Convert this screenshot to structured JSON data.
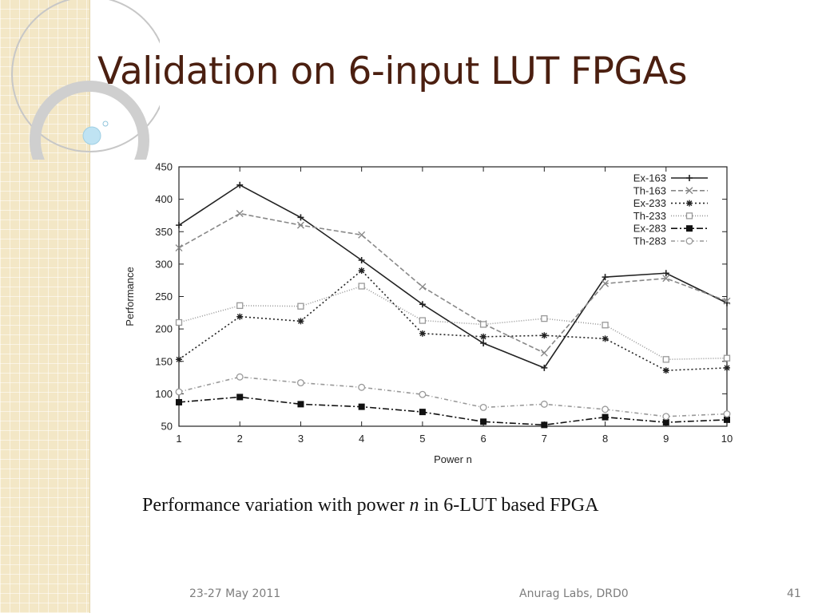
{
  "slide": {
    "title": "Validation on 6-input LUT FPGAs",
    "caption": {
      "before": "Performance variation with power ",
      "var": "n",
      "after": " in 6-LUT based FPGA"
    },
    "footer": {
      "date": "23-27 May 2011",
      "org": "Anurag Labs, DRD0",
      "page": "41"
    }
  },
  "colors": {
    "title": "#4b1f10",
    "sidebar": "#f3e7c6",
    "accent_bubble": "#bfe3f3"
  },
  "chart_data": {
    "type": "line",
    "title": "",
    "xlabel": "Power n",
    "ylabel": "Performance",
    "x": [
      1,
      2,
      3,
      4,
      5,
      6,
      7,
      8,
      9,
      10
    ],
    "xlim": [
      1,
      10
    ],
    "ylim": [
      50,
      450
    ],
    "yticks": [
      50,
      100,
      150,
      200,
      250,
      300,
      350,
      400,
      450
    ],
    "legend_position": "top-right",
    "grid": false,
    "series": [
      {
        "name": "Ex-163",
        "values": [
          360,
          422,
          372,
          306,
          238,
          178,
          140,
          280,
          286,
          240
        ],
        "color": "#222222",
        "marker": "plus",
        "dash": ""
      },
      {
        "name": "Th-163",
        "values": [
          325,
          378,
          360,
          345,
          265,
          208,
          163,
          270,
          278,
          243
        ],
        "color": "#888888",
        "marker": "x",
        "dash": "6,3"
      },
      {
        "name": "Ex-233",
        "values": [
          153,
          219,
          212,
          290,
          193,
          188,
          190,
          185,
          136,
          140
        ],
        "color": "#222222",
        "marker": "star",
        "dash": "2,3"
      },
      {
        "name": "Th-233",
        "values": [
          210,
          236,
          235,
          266,
          213,
          207,
          216,
          206,
          153,
          155
        ],
        "color": "#999999",
        "marker": "square-open",
        "dash": "1,2"
      },
      {
        "name": "Ex-283",
        "values": [
          87,
          95,
          84,
          80,
          72,
          57,
          52,
          64,
          56,
          60
        ],
        "color": "#111111",
        "marker": "square-filled",
        "dash": "8,3,2,3"
      },
      {
        "name": "Th-283",
        "values": [
          103,
          126,
          117,
          110,
          99,
          79,
          84,
          76,
          65,
          69
        ],
        "color": "#999999",
        "marker": "circle-open",
        "dash": "5,3,1,3"
      }
    ]
  }
}
